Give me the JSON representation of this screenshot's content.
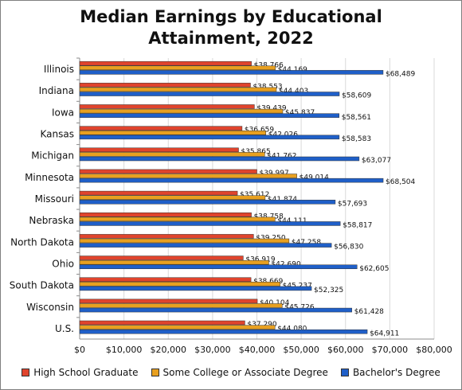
{
  "chart_data": {
    "type": "bar",
    "orientation": "horizontal",
    "title": "Median Earnings by Educational Attainment, 2022",
    "title_lines": [
      "Median Earnings by Educational",
      "Attainment, 2022"
    ],
    "categories": [
      "Illinois",
      "Indiana",
      "Iowa",
      "Kansas",
      "Michigan",
      "Minnesota",
      "Missouri",
      "Nebraska",
      "North Dakota",
      "Ohio",
      "South Dakota",
      "Wisconsin",
      "U.S."
    ],
    "series": [
      {
        "name": "High School Graduate",
        "color": "#e0442d",
        "values": [
          38766,
          38553,
          39439,
          36659,
          35865,
          39997,
          35612,
          38758,
          39250,
          36919,
          38669,
          40104,
          37290
        ],
        "labels": [
          "$38,766",
          "$38,553",
          "$39,439",
          "$36,659",
          "$35,865",
          "$39,997",
          "$35,612",
          "$38,758",
          "$39,250",
          "$36,919",
          "$38,669",
          "$40,104",
          "$37,290"
        ]
      },
      {
        "name": "Some College or Associate Degree",
        "color": "#e8a020",
        "values": [
          44169,
          44403,
          45837,
          42026,
          41762,
          49014,
          41874,
          44111,
          47258,
          42690,
          45237,
          45726,
          44080
        ],
        "labels": [
          "$44,169",
          "$44,403",
          "$45,837",
          "$42,026",
          "$41,762",
          "$49,014",
          "$41,874",
          "$44,111",
          "$47,258",
          "$42,690",
          "$45,237",
          "$45,726",
          "$44,080"
        ]
      },
      {
        "name": "Bachelor's Degree",
        "color": "#1f5fc8",
        "values": [
          68489,
          58609,
          58561,
          58583,
          63077,
          68504,
          57693,
          58817,
          56830,
          62605,
          52325,
          61428,
          64911
        ],
        "labels": [
          "$68,489",
          "$58,609",
          "$58,561",
          "$58,583",
          "$63,077",
          "$68,504",
          "$57,693",
          "$58,817",
          "$56,830",
          "$62,605",
          "$52,325",
          "$61,428",
          "$64,911"
        ]
      }
    ],
    "xlim": [
      0,
      80000
    ],
    "x_ticks": [
      0,
      10000,
      20000,
      30000,
      40000,
      50000,
      60000,
      70000,
      80000
    ],
    "x_tick_labels": [
      "$0",
      "$10,000",
      "$20,000",
      "$30,000",
      "$40,000",
      "$50,000",
      "$60,000",
      "$70,000",
      "$80,000"
    ],
    "grid": true,
    "legend": "bottom"
  }
}
